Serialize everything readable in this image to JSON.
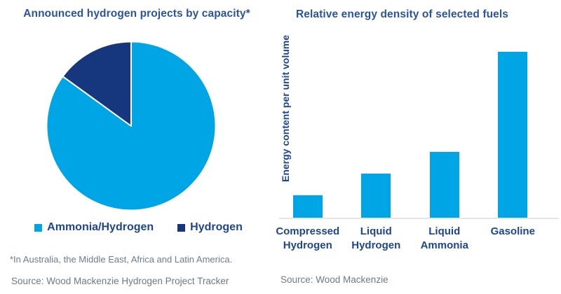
{
  "page": {
    "background": "#FFFFFF"
  },
  "colors": {
    "title_navy": "#2A549E",
    "label_navy": "#1E4592",
    "light_blue": "#00A5E6",
    "dark_blue": "#16377E",
    "muted_text": "#6E7B94",
    "axis_line": "#E4E6E9"
  },
  "chart_data": [
    {
      "type": "pie",
      "title": "Announced hydrogen projects by capacity*",
      "slices": [
        {
          "label": "Ammonia/Hydrogen",
          "value": 85,
          "color": "#00A5E6"
        },
        {
          "label": "Hydrogen",
          "value": 15,
          "color": "#16377E"
        }
      ],
      "values_note": "percent shares estimated from slice angles (no data labels shown)",
      "start_angle_deg": -90,
      "direction": "clockwise",
      "legend_position": "bottom",
      "footnote": "*In Australia, the Middle East, Africa and Latin America.",
      "source": "Source: Wood Mackenzie Hydrogen Project Tracker"
    },
    {
      "type": "bar",
      "title": "Relative energy density of selected fuels",
      "categories": [
        "Compressed Hydrogen",
        "Liquid Hydrogen",
        "Liquid Ammonia",
        "Gasoline"
      ],
      "values": [
        14,
        27,
        40,
        100
      ],
      "values_note": "relative heights estimated from chart, Gasoline = 100 (no y-axis ticks shown)",
      "ylabel": "Energy content per unit volume",
      "xlabel": "",
      "ylim": [
        0,
        110
      ],
      "grid": false,
      "legend_position": "none",
      "bar_color": "#00A5E6",
      "source": "Source: Wood Mackenzie"
    }
  ]
}
